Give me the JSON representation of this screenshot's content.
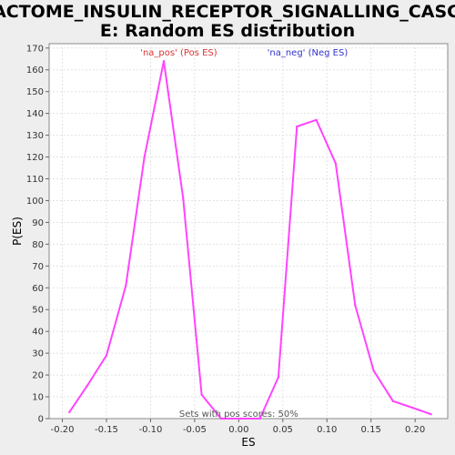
{
  "chart_data": {
    "type": "line",
    "title_line1": "REACTOME_INSULIN_RECEPTOR_SIGNALLING_CASCAD",
    "title_line2": "E: Random ES distribution",
    "xlabel": "ES",
    "ylabel": "P(ES)",
    "xlim": [
      -0.215,
      0.237
    ],
    "ylim": [
      0,
      172
    ],
    "xticks": [
      -0.2,
      -0.15,
      -0.1,
      -0.05,
      0.0,
      0.05,
      0.1,
      0.15,
      0.2
    ],
    "xtick_labels": [
      "-0.20",
      "-0.15",
      "-0.10",
      "-0.05",
      "0.00",
      "0.05",
      "0.10",
      "0.15",
      "0.20"
    ],
    "yticks": [
      0,
      10,
      20,
      30,
      40,
      50,
      60,
      70,
      80,
      90,
      100,
      110,
      120,
      130,
      140,
      150,
      160,
      170
    ],
    "grid": true,
    "line_color": "#ff44ff",
    "series": [
      {
        "x": [
          -0.192,
          -0.172,
          -0.15,
          -0.128,
          -0.107,
          -0.085,
          -0.063,
          -0.042,
          -0.02,
          0.002,
          0.024,
          0.045,
          0.066,
          0.088,
          0.11,
          0.132,
          0.153,
          0.175,
          0.197,
          0.218
        ],
        "values": [
          3,
          15,
          29,
          61,
          120,
          164,
          101,
          11,
          0,
          0,
          0,
          19,
          134,
          137,
          117,
          52,
          22,
          8,
          5,
          2
        ]
      }
    ],
    "annotations": [
      {
        "text": "'na_pos' (Pos ES)",
        "color": "#dd3333",
        "x": -0.068
      },
      {
        "text": "'na_neg' (Neg ES)",
        "color": "#3333cc",
        "x": 0.078
      }
    ],
    "footnote": "Sets with pos scores: 50%"
  }
}
